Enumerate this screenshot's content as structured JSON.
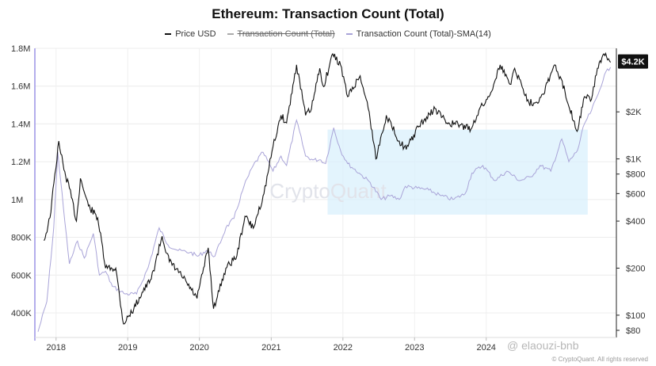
{
  "chart_data": {
    "type": "line",
    "title": "Ethereum: Transaction Count (Total)",
    "series": [
      {
        "name": "Price USD",
        "color": "#111111",
        "axis": "right",
        "points": [
          [
            "2017-11-01",
            300
          ],
          [
            "2017-12-01",
            420
          ],
          [
            "2018-01-15",
            1300
          ],
          [
            "2018-02-10",
            850
          ],
          [
            "2018-03-10",
            650
          ],
          [
            "2018-04-15",
            400
          ],
          [
            "2018-05-05",
            750
          ],
          [
            "2018-06-15",
            500
          ],
          [
            "2018-08-01",
            420
          ],
          [
            "2018-09-10",
            200
          ],
          [
            "2018-11-01",
            200
          ],
          [
            "2018-12-10",
            88
          ],
          [
            "2019-02-01",
            110
          ],
          [
            "2019-03-15",
            140
          ],
          [
            "2019-05-01",
            170
          ],
          [
            "2019-06-25",
            320
          ],
          [
            "2019-08-01",
            220
          ],
          [
            "2019-10-01",
            180
          ],
          [
            "2019-12-20",
            128
          ],
          [
            "2020-02-15",
            270
          ],
          [
            "2020-03-13",
            110
          ],
          [
            "2020-05-15",
            200
          ],
          [
            "2020-07-10",
            240
          ],
          [
            "2020-08-20",
            430
          ],
          [
            "2020-10-01",
            360
          ],
          [
            "2020-11-25",
            600
          ],
          [
            "2021-01-10",
            1200
          ],
          [
            "2021-02-20",
            1900
          ],
          [
            "2021-03-20",
            1700
          ],
          [
            "2021-05-10",
            4000
          ],
          [
            "2021-06-25",
            1900
          ],
          [
            "2021-07-25",
            2100
          ],
          [
            "2021-09-05",
            3800
          ],
          [
            "2021-09-25",
            2900
          ],
          [
            "2021-11-10",
            4700
          ],
          [
            "2021-12-20",
            4000
          ],
          [
            "2022-01-25",
            2500
          ],
          [
            "2022-03-30",
            3400
          ],
          [
            "2022-05-15",
            2000
          ],
          [
            "2022-06-18",
            1000
          ],
          [
            "2022-08-10",
            1900
          ],
          [
            "2022-10-15",
            1300
          ],
          [
            "2022-11-20",
            1150
          ],
          [
            "2023-01-20",
            1600
          ],
          [
            "2023-04-15",
            2100
          ],
          [
            "2023-06-15",
            1700
          ],
          [
            "2023-08-20",
            1650
          ],
          [
            "2023-10-15",
            1550
          ],
          [
            "2023-11-25",
            2050
          ],
          [
            "2024-01-15",
            2500
          ],
          [
            "2024-03-12",
            4000
          ],
          [
            "2024-05-01",
            3000
          ],
          [
            "2024-05-25",
            3800
          ],
          [
            "2024-08-05",
            2300
          ],
          [
            "2024-09-10",
            2300
          ],
          [
            "2024-10-15",
            2600
          ],
          [
            "2024-12-15",
            4000
          ],
          [
            "2025-02-05",
            2700
          ],
          [
            "2025-04-08",
            1500
          ],
          [
            "2025-05-15",
            2500
          ],
          [
            "2025-06-20",
            2400
          ],
          [
            "2025-07-20",
            3800
          ],
          [
            "2025-08-22",
            4700
          ],
          [
            "2025-09-10",
            4300
          ],
          [
            "2025-09-25",
            4150
          ]
        ]
      },
      {
        "name": "Transaction Count (Total)",
        "color": "#b8b8b8",
        "axis": "left",
        "legend_struck": true,
        "points": []
      },
      {
        "name": "Transaction Count (Total)-SMA(14)",
        "color": "#a9a4d8",
        "axis": "left",
        "points": [
          [
            "2017-10-01",
            300000
          ],
          [
            "2017-11-15",
            460000
          ],
          [
            "2017-12-20",
            850000
          ],
          [
            "2018-01-10",
            1250000
          ],
          [
            "2018-02-15",
            880000
          ],
          [
            "2018-03-10",
            660000
          ],
          [
            "2018-04-20",
            780000
          ],
          [
            "2018-05-25",
            690000
          ],
          [
            "2018-07-10",
            820000
          ],
          [
            "2018-08-10",
            600000
          ],
          [
            "2018-09-10",
            620000
          ],
          [
            "2018-10-15",
            540000
          ],
          [
            "2018-12-20",
            500000
          ],
          [
            "2019-02-15",
            500000
          ],
          [
            "2019-04-15",
            640000
          ],
          [
            "2019-06-10",
            850000
          ],
          [
            "2019-07-25",
            760000
          ],
          [
            "2019-09-15",
            730000
          ],
          [
            "2019-11-15",
            720000
          ],
          [
            "2019-12-25",
            700000
          ],
          [
            "2020-02-05",
            730000
          ],
          [
            "2020-03-20",
            700000
          ],
          [
            "2020-05-15",
            850000
          ],
          [
            "2020-06-25",
            900000
          ],
          [
            "2020-08-15",
            1070000
          ],
          [
            "2020-10-01",
            1180000
          ],
          [
            "2020-11-20",
            1250000
          ],
          [
            "2021-01-10",
            1150000
          ],
          [
            "2021-02-20",
            1230000
          ],
          [
            "2021-03-20",
            1180000
          ],
          [
            "2021-05-10",
            1420000
          ],
          [
            "2021-06-25",
            1230000
          ],
          [
            "2021-08-01",
            1210000
          ],
          [
            "2021-09-10",
            1210000
          ],
          [
            "2021-10-05",
            1190000
          ],
          [
            "2021-11-15",
            1380000
          ],
          [
            "2021-12-20",
            1260000
          ],
          [
            "2022-01-25",
            1190000
          ],
          [
            "2022-03-25",
            1140000
          ],
          [
            "2022-05-20",
            1090000
          ],
          [
            "2022-07-15",
            1000000
          ],
          [
            "2022-09-01",
            1020000
          ],
          [
            "2022-10-15",
            1000000
          ],
          [
            "2022-11-15",
            1070000
          ],
          [
            "2023-01-15",
            1060000
          ],
          [
            "2023-03-15",
            1050000
          ],
          [
            "2023-05-15",
            1020000
          ],
          [
            "2023-07-15",
            1000000
          ],
          [
            "2023-09-15",
            1030000
          ],
          [
            "2023-10-20",
            1140000
          ],
          [
            "2023-12-15",
            1180000
          ],
          [
            "2024-02-15",
            1100000
          ],
          [
            "2024-04-15",
            1150000
          ],
          [
            "2024-06-20",
            1100000
          ],
          [
            "2024-08-15",
            1120000
          ],
          [
            "2024-10-01",
            1180000
          ],
          [
            "2024-11-25",
            1150000
          ],
          [
            "2025-01-20",
            1320000
          ],
          [
            "2025-02-25",
            1200000
          ],
          [
            "2025-04-10",
            1260000
          ],
          [
            "2025-05-15",
            1400000
          ],
          [
            "2025-06-20",
            1470000
          ],
          [
            "2025-07-25",
            1560000
          ],
          [
            "2025-08-25",
            1660000
          ],
          [
            "2025-09-25",
            1700000
          ]
        ]
      }
    ],
    "left_axis": {
      "ticks": [
        "400K",
        "600K",
        "800K",
        "1M",
        "1.2M",
        "1.4M",
        "1.6M",
        "1.8M"
      ],
      "values": [
        400000,
        600000,
        800000,
        1000000,
        1200000,
        1400000,
        1600000,
        1800000
      ],
      "ylim": [
        270000,
        1800000
      ]
    },
    "right_axis": {
      "scale": "log",
      "ticks": [
        "$80",
        "$100",
        "$200",
        "$400",
        "$600",
        "$800",
        "$1K",
        "$2K",
        "$4.2K"
      ],
      "values": [
        80,
        100,
        200,
        400,
        600,
        800,
        1000,
        2000,
        4200
      ],
      "ylim": [
        72,
        5100
      ]
    },
    "x_axis": {
      "ticks": [
        "2018",
        "2019",
        "2020",
        "2021",
        "2022",
        "2023",
        "2024"
      ],
      "values": [
        "2018-01-01",
        "2019-01-01",
        "2020-01-01",
        "2021-01-01",
        "2022-01-01",
        "2023-01-01",
        "2024-01-01"
      ],
      "xlim": [
        "2017-09-15",
        "2025-10-25"
      ]
    },
    "price_tag": "$4.2K",
    "grid": true,
    "highlight_region": {
      "x": [
        "2021-10-15",
        "2025-06-01"
      ],
      "y": [
        920000,
        1370000
      ],
      "color": "#d7effc"
    },
    "legend_position": "top-center"
  },
  "watermark": "CryptoQuant",
  "overlay_handle": "@ elaouzi-bnb",
  "credit": "© CryptoQuant. All rights reserved"
}
